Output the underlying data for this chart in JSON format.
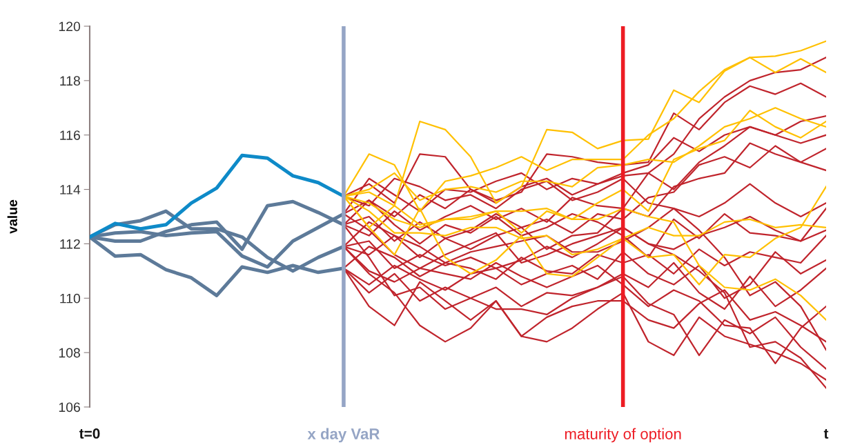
{
  "chart_data": {
    "type": "line",
    "ylabel": "value",
    "categories": [
      "t=0",
      null,
      null,
      null,
      null,
      null,
      null,
      null,
      null,
      null,
      "x day VaR",
      null,
      null,
      null,
      null,
      null,
      null,
      null,
      null,
      null,
      null,
      "maturity of option",
      null,
      null,
      null,
      null,
      null,
      null,
      null,
      "t"
    ],
    "ylim": [
      106,
      120
    ],
    "yticks": [
      106,
      108,
      110,
      112,
      114,
      116,
      118,
      120
    ],
    "grid": false,
    "marker": "none",
    "line_style": "solid",
    "ref_lines": [
      {
        "axis": "x",
        "value": "x day VaR",
        "color": "#95a5c5"
      },
      {
        "axis": "x",
        "value": "maturity of option",
        "color": "#ed1c24"
      }
    ],
    "series": [
      {
        "color": "#5d7a99",
        "values": [
          112.25,
          112.7,
          112.85,
          113.2,
          112.55,
          112.55,
          112.25,
          111.5,
          111.0,
          111.5,
          111.9,
          null,
          null,
          null,
          null,
          null,
          null,
          null,
          null,
          null,
          null,
          null,
          null,
          null,
          null,
          null,
          null,
          null,
          null,
          null
        ]
      },
      {
        "color": "#5d7a99",
        "values": [
          112.25,
          112.4,
          112.45,
          112.3,
          112.4,
          112.45,
          111.55,
          111.15,
          112.1,
          112.6,
          113.1,
          null,
          null,
          null,
          null,
          null,
          null,
          null,
          null,
          null,
          null,
          null,
          null,
          null,
          null,
          null,
          null,
          null,
          null,
          null
        ]
      },
      {
        "color": "#5d7a99",
        "values": [
          112.25,
          112.1,
          112.1,
          112.45,
          112.7,
          112.8,
          111.8,
          113.4,
          113.55,
          113.15,
          112.7,
          null,
          null,
          null,
          null,
          null,
          null,
          null,
          null,
          null,
          null,
          null,
          null,
          null,
          null,
          null,
          null,
          null,
          null,
          null
        ]
      },
      {
        "color": "#5d7a99",
        "values": [
          112.25,
          111.55,
          111.6,
          111.05,
          110.75,
          110.1,
          111.15,
          110.95,
          111.2,
          110.95,
          111.1,
          null,
          null,
          null,
          null,
          null,
          null,
          null,
          null,
          null,
          null,
          null,
          null,
          null,
          null,
          null,
          null,
          null,
          null,
          null
        ]
      },
      {
        "color": "#0e8ac8",
        "values": [
          112.25,
          112.75,
          112.55,
          112.7,
          113.5,
          114.05,
          115.25,
          115.15,
          114.5,
          114.25,
          113.75,
          null,
          null,
          null,
          null,
          null,
          null,
          null,
          null,
          null,
          null,
          null,
          null,
          null,
          null,
          null,
          null,
          null,
          null,
          null
        ]
      },
      {
        "color": "#c0242c",
        "values": [
          null,
          null,
          null,
          null,
          null,
          null,
          null,
          null,
          null,
          null,
          113.75,
          114.2,
          113.5,
          115.3,
          115.2,
          114.0,
          113.6,
          113.9,
          115.3,
          115.2,
          115.0,
          114.9,
          115.0,
          116.8,
          116.2,
          117.2,
          117.8,
          117.5,
          117.9,
          117.4
        ]
      },
      {
        "color": "#c0242c",
        "values": [
          null,
          null,
          null,
          null,
          null,
          null,
          null,
          null,
          null,
          null,
          113.1,
          114.4,
          113.8,
          113.2,
          114.0,
          113.9,
          114.3,
          114.6,
          114.0,
          114.4,
          114.2,
          114.5,
          114.6,
          115.3,
          116.6,
          117.4,
          118.0,
          118.3,
          118.4,
          118.85
        ]
      },
      {
        "color": "#c0242c",
        "values": [
          null,
          null,
          null,
          null,
          null,
          null,
          null,
          null,
          null,
          null,
          113.1,
          113.6,
          113.0,
          113.8,
          113.3,
          114.0,
          113.5,
          114.1,
          114.4,
          113.8,
          114.2,
          114.6,
          114.9,
          115.9,
          115.4,
          116.0,
          116.3,
          116.0,
          116.5,
          116.7
        ]
      },
      {
        "color": "#c0242c",
        "values": [
          null,
          null,
          null,
          null,
          null,
          null,
          null,
          null,
          null,
          null,
          112.7,
          112.3,
          113.2,
          112.5,
          113.0,
          113.4,
          112.9,
          113.3,
          112.8,
          113.7,
          113.4,
          113.3,
          114.6,
          114.0,
          115.0,
          115.6,
          116.3,
          116.0,
          115.7,
          116.0
        ]
      },
      {
        "color": "#c0242c",
        "values": [
          null,
          null,
          null,
          null,
          null,
          null,
          null,
          null,
          null,
          null,
          112.7,
          113.0,
          112.1,
          112.8,
          112.2,
          112.5,
          113.1,
          112.6,
          112.9,
          112.4,
          113.1,
          112.9,
          113.7,
          113.9,
          114.9,
          115.2,
          114.8,
          115.6,
          115.0,
          115.5
        ]
      },
      {
        "color": "#c0242c",
        "values": [
          null,
          null,
          null,
          null,
          null,
          null,
          null,
          null,
          null,
          null,
          111.9,
          112.8,
          112.3,
          111.5,
          112.2,
          111.8,
          112.3,
          112.6,
          111.8,
          112.3,
          112.4,
          113.3,
          113.0,
          114.1,
          114.4,
          114.6,
          115.7,
          115.3,
          115.0,
          114.7
        ]
      },
      {
        "color": "#c0242c",
        "values": [
          null,
          null,
          null,
          null,
          null,
          null,
          null,
          null,
          null,
          null,
          111.9,
          111.6,
          112.3,
          111.9,
          111.3,
          111.7,
          111.9,
          112.1,
          112.3,
          111.7,
          111.7,
          112.1,
          112.6,
          113.3,
          113.0,
          113.5,
          114.2,
          113.5,
          113.0,
          113.5
        ]
      },
      {
        "color": "#c0242c",
        "values": [
          null,
          null,
          null,
          null,
          null,
          null,
          null,
          null,
          null,
          null,
          111.9,
          112.1,
          111.1,
          111.6,
          111.2,
          111.5,
          111.1,
          111.4,
          111.9,
          111.5,
          112.0,
          112.6,
          112.0,
          111.8,
          112.3,
          112.6,
          113.0,
          112.5,
          112.1,
          112.5
        ]
      },
      {
        "color": "#c0242c",
        "values": [
          null,
          null,
          null,
          null,
          null,
          null,
          null,
          null,
          null,
          null,
          111.1,
          111.9,
          111.5,
          110.8,
          111.3,
          111.1,
          110.7,
          111.5,
          111.0,
          110.9,
          111.6,
          111.3,
          111.6,
          110.9,
          111.8,
          111.2,
          111.7,
          111.5,
          111.3,
          112.3
        ]
      },
      {
        "color": "#c0242c",
        "values": [
          null,
          null,
          null,
          null,
          null,
          null,
          null,
          null,
          null,
          null,
          111.1,
          110.5,
          111.2,
          110.7,
          110.3,
          110.9,
          111.1,
          110.5,
          110.9,
          111.2,
          110.7,
          111.7,
          110.9,
          110.5,
          111.2,
          110.0,
          110.5,
          111.7,
          110.9,
          111.4
        ]
      },
      {
        "color": "#c0242c",
        "values": [
          null,
          null,
          null,
          null,
          null,
          null,
          null,
          null,
          null,
          null,
          111.1,
          110.2,
          110.9,
          109.9,
          110.4,
          110.0,
          110.4,
          109.7,
          110.2,
          110.1,
          110.4,
          110.9,
          110.4,
          111.3,
          110.2,
          109.6,
          110.8,
          109.7,
          110.3,
          111.1
        ]
      },
      {
        "color": "#c0242c",
        "values": [
          null,
          null,
          null,
          null,
          null,
          null,
          null,
          null,
          null,
          null,
          111.1,
          109.7,
          109.0,
          110.6,
          109.9,
          109.2,
          109.9,
          108.6,
          109.3,
          109.7,
          109.9,
          109.9,
          109.2,
          108.9,
          109.8,
          110.3,
          109.2,
          109.5,
          109.0,
          108.4
        ]
      },
      {
        "color": "#c0242c",
        "values": [
          null,
          null,
          null,
          null,
          null,
          null,
          null,
          null,
          null,
          null,
          111.9,
          110.9,
          110.2,
          109.0,
          108.4,
          108.9,
          109.9,
          108.6,
          108.4,
          108.9,
          109.6,
          110.2,
          108.4,
          107.9,
          109.3,
          108.6,
          108.3,
          108.0,
          107.6,
          107.0
        ]
      },
      {
        "color": "#c0242c",
        "values": [
          null,
          null,
          null,
          null,
          null,
          null,
          null,
          null,
          null,
          null,
          112.7,
          111.5,
          110.1,
          110.4,
          109.6,
          110.0,
          109.6,
          109.6,
          109.4,
          110.0,
          110.4,
          110.8,
          109.8,
          109.4,
          107.9,
          109.2,
          108.7,
          109.3,
          108.2,
          107.4
        ]
      },
      {
        "color": "#c0242c",
        "values": [
          null,
          null,
          null,
          null,
          null,
          null,
          null,
          null,
          null,
          null,
          113.1,
          112.5,
          111.6,
          111.1,
          111.6,
          112.0,
          112.4,
          111.3,
          111.6,
          112.0,
          112.3,
          112.6,
          112.0,
          111.6,
          111.0,
          110.2,
          108.2,
          108.4,
          107.8,
          106.7
        ]
      },
      {
        "color": "#c0242c",
        "values": [
          null,
          null,
          null,
          null,
          null,
          null,
          null,
          null,
          null,
          null,
          113.75,
          113.4,
          114.4,
          114.1,
          113.6,
          113.8,
          113.3,
          114.0,
          114.3,
          113.6,
          113.9,
          114.4,
          113.5,
          113.3,
          112.5,
          111.5,
          110.1,
          110.6,
          109.7,
          108.1
        ]
      },
      {
        "color": "#c0242c",
        "values": [
          null,
          null,
          null,
          null,
          null,
          null,
          null,
          null,
          null,
          null,
          112.7,
          113.6,
          112.7,
          112.0,
          112.7,
          112.4,
          113.0,
          112.3,
          112.6,
          113.1,
          112.8,
          112.3,
          111.5,
          112.9,
          112.2,
          113.1,
          112.4,
          112.3,
          112.1,
          113.3
        ]
      },
      {
        "color": "#c0242c",
        "values": [
          null,
          null,
          null,
          null,
          null,
          null,
          null,
          null,
          null,
          null,
          111.9,
          111.0,
          110.6,
          111.1,
          110.9,
          110.7,
          111.3,
          110.8,
          110.4,
          110.8,
          111.2,
          110.5,
          109.7,
          110.3,
          109.9,
          109.0,
          108.9,
          107.6,
          108.9,
          109.7
        ]
      },
      {
        "color": "#ffc000",
        "values": [
          null,
          null,
          null,
          null,
          null,
          null,
          null,
          null,
          null,
          null,
          113.75,
          112.6,
          113.4,
          116.5,
          116.2,
          115.2,
          113.5,
          114.1,
          116.2,
          116.1,
          115.5,
          115.8,
          115.85,
          117.65,
          117.2,
          118.35,
          118.85,
          118.3,
          118.8,
          118.3
        ]
      },
      {
        "color": "#ffc000",
        "values": [
          null,
          null,
          null,
          null,
          null,
          null,
          null,
          null,
          null,
          null,
          113.75,
          115.3,
          114.9,
          113.2,
          114.3,
          114.5,
          114.8,
          115.2,
          114.7,
          115.1,
          115.1,
          115.1,
          116.0,
          116.6,
          117.6,
          118.4,
          118.85,
          118.9,
          119.1,
          119.45
        ]
      },
      {
        "color": "#ffc000",
        "values": [
          null,
          null,
          null,
          null,
          null,
          null,
          null,
          null,
          null,
          null,
          113.75,
          114.0,
          114.6,
          113.6,
          114.0,
          114.1,
          113.9,
          114.3,
          114.3,
          114.1,
          114.8,
          114.9,
          115.1,
          115.0,
          115.6,
          116.3,
          116.6,
          117.0,
          116.6,
          116.3
        ]
      },
      {
        "color": "#ffc000",
        "values": [
          null,
          null,
          null,
          null,
          null,
          null,
          null,
          null,
          null,
          null,
          113.75,
          113.9,
          113.4,
          112.7,
          112.9,
          112.9,
          113.2,
          113.2,
          113.3,
          112.9,
          113.5,
          114.0,
          113.2,
          115.1,
          115.5,
          115.8,
          116.9,
          116.3,
          115.9,
          116.5
        ]
      },
      {
        "color": "#ffc000",
        "values": [
          null,
          null,
          null,
          null,
          null,
          null,
          null,
          null,
          null,
          null,
          113.75,
          113.2,
          112.4,
          112.4,
          112.3,
          112.6,
          112.6,
          112.2,
          112.3,
          111.6,
          111.8,
          112.2,
          112.6,
          112.3,
          112.3,
          112.8,
          112.9,
          112.6,
          112.7,
          112.6
        ]
      },
      {
        "color": "#ffc000",
        "values": [
          null,
          null,
          null,
          null,
          null,
          null,
          null,
          null,
          null,
          null,
          113.75,
          112.6,
          111.6,
          113.3,
          111.5,
          110.9,
          111.4,
          112.3,
          110.9,
          110.8,
          111.5,
          112.2,
          111.5,
          111.6,
          110.5,
          111.6,
          111.5,
          112.2,
          112.6,
          114.1
        ]
      },
      {
        "color": "#ffc000",
        "values": [
          null,
          null,
          null,
          null,
          null,
          null,
          null,
          null,
          null,
          null,
          113.75,
          113.5,
          112.9,
          112.6,
          112.9,
          113.0,
          113.2,
          112.4,
          113.2,
          112.9,
          112.9,
          113.3,
          113.0,
          112.8,
          111.2,
          110.4,
          110.3,
          110.7,
          110.1,
          109.2
        ]
      }
    ]
  }
}
